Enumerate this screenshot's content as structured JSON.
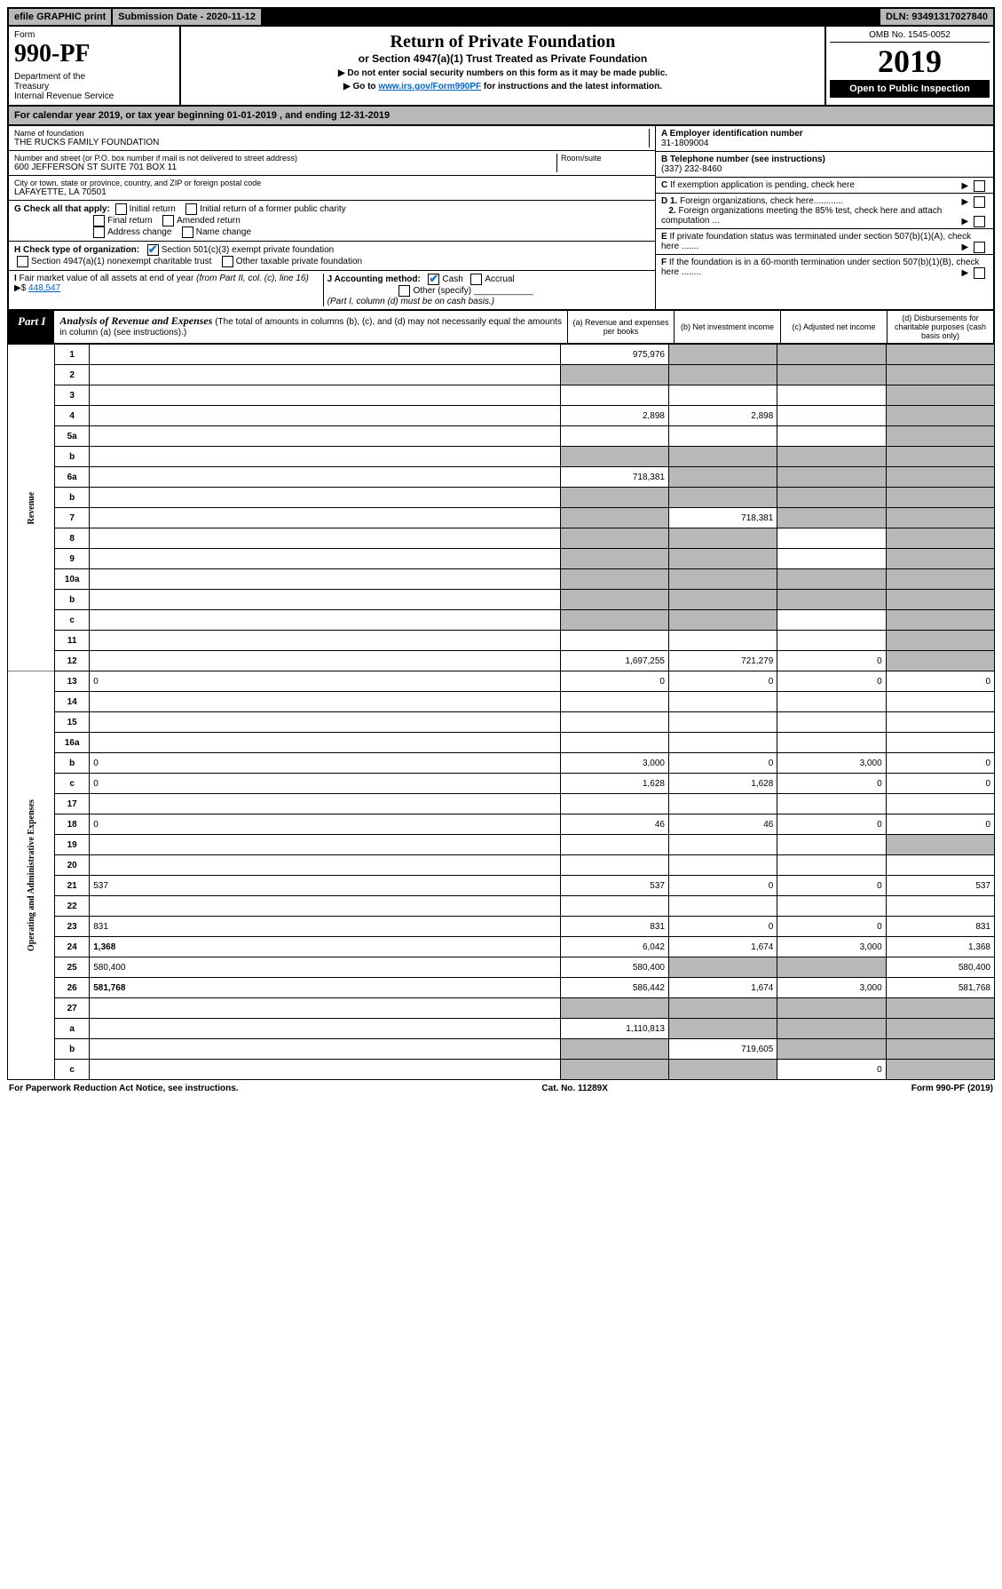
{
  "topbar": {
    "efile": "efile GRAPHIC print",
    "subdate_label": "Submission Date - 2020-11-12",
    "dln": "DLN: 93491317027840"
  },
  "header": {
    "form_label": "Form",
    "form_number": "990-PF",
    "dept": "Department of the Treasury\nInternal Revenue Service",
    "title": "Return of Private Foundation",
    "subtitle": "or Section 4947(a)(1) Trust Treated as Private Foundation",
    "instr1": "▶ Do not enter social security numbers on this form as it may be made public.",
    "instr2_pre": "▶ Go to ",
    "instr2_link": "www.irs.gov/Form990PF",
    "instr2_post": " for instructions and the latest information.",
    "omb": "OMB No. 1545-0052",
    "year": "2019",
    "open": "Open to Public Inspection"
  },
  "calendar": "For calendar year 2019, or tax year beginning 01-01-2019             , and ending 12-31-2019",
  "foundation": {
    "name_label": "Name of foundation",
    "name": "THE RUCKS FAMILY FOUNDATION",
    "addr_label": "Number and street (or P.O. box number if mail is not delivered to street address)",
    "addr": "600 JEFFERSON ST SUITE 701 BOX 11",
    "room_label": "Room/suite",
    "city_label": "City or town, state or province, country, and ZIP or foreign postal code",
    "city": "LAFAYETTE, LA  70501",
    "ein_label": "A Employer identification number",
    "ein": "31-1809004",
    "phone_label": "B Telephone number (see instructions)",
    "phone": "(337) 232-8460",
    "c_label": "C If exemption application is pending, check here",
    "d1": "D 1. Foreign organizations, check here............",
    "d2": "2. Foreign organizations meeting the 85% test, check here and attach computation ...",
    "e": "E If private foundation status was terminated under section 507(b)(1)(A), check here .......",
    "f": "F If the foundation is in a 60-month termination under section 507(b)(1)(B), check here ........"
  },
  "g": {
    "label": "G Check all that apply:",
    "opts": [
      "Initial return",
      "Initial return of a former public charity",
      "Final return",
      "Amended return",
      "Address change",
      "Name change"
    ]
  },
  "h": {
    "label": "H Check type of organization:",
    "opt1": "Section 501(c)(3) exempt private foundation",
    "opt2": "Section 4947(a)(1) nonexempt charitable trust",
    "opt3": "Other taxable private foundation"
  },
  "i": {
    "label": "I Fair market value of all assets at end of year (from Part II, col. (c), line 16) ▶$",
    "value": "448,547"
  },
  "j": {
    "label": "J Accounting method:",
    "cash": "Cash",
    "accrual": "Accrual",
    "other": "Other (specify)",
    "note": "(Part I, column (d) must be on cash basis.)"
  },
  "part1": {
    "label": "Part I",
    "title": "Analysis of Revenue and Expenses",
    "title_note": "(The total of amounts in columns (b), (c), and (d) may not necessarily equal the amounts in column (a) (see instructions).)",
    "col_a": "(a) Revenue and expenses per books",
    "col_b": "(b) Net investment income",
    "col_c": "(c) Adjusted net income",
    "col_d": "(d) Disbursements for charitable purposes (cash basis only)"
  },
  "side_labels": {
    "revenue": "Revenue",
    "expenses": "Operating and Administrative Expenses"
  },
  "rows": [
    {
      "n": "1",
      "d": "",
      "a": "975,976",
      "b": "",
      "c": "",
      "shade": [
        "b",
        "c",
        "d"
      ]
    },
    {
      "n": "2",
      "d": "",
      "a": "",
      "b": "",
      "c": "",
      "shade": [
        "a",
        "b",
        "c",
        "d"
      ],
      "nobold": true
    },
    {
      "n": "3",
      "d": "",
      "a": "",
      "b": "",
      "c": "",
      "shade": [
        "d"
      ]
    },
    {
      "n": "4",
      "d": "",
      "a": "2,898",
      "b": "2,898",
      "c": "",
      "shade": [
        "d"
      ]
    },
    {
      "n": "5a",
      "d": "",
      "a": "",
      "b": "",
      "c": "",
      "shade": [
        "d"
      ]
    },
    {
      "n": "b",
      "d": "",
      "a": "",
      "b": "",
      "c": "",
      "shade": [
        "a",
        "b",
        "c",
        "d"
      ]
    },
    {
      "n": "6a",
      "d": "",
      "a": "718,381",
      "b": "",
      "c": "",
      "shade": [
        "b",
        "c",
        "d"
      ]
    },
    {
      "n": "b",
      "d": "",
      "a": "",
      "b": "",
      "c": "",
      "shade": [
        "a",
        "b",
        "c",
        "d"
      ]
    },
    {
      "n": "7",
      "d": "",
      "a": "",
      "b": "718,381",
      "c": "",
      "shade": [
        "a",
        "c",
        "d"
      ]
    },
    {
      "n": "8",
      "d": "",
      "a": "",
      "b": "",
      "c": "",
      "shade": [
        "a",
        "b",
        "d"
      ]
    },
    {
      "n": "9",
      "d": "",
      "a": "",
      "b": "",
      "c": "",
      "shade": [
        "a",
        "b",
        "d"
      ]
    },
    {
      "n": "10a",
      "d": "",
      "a": "",
      "b": "",
      "c": "",
      "shade": [
        "a",
        "b",
        "c",
        "d"
      ]
    },
    {
      "n": "b",
      "d": "",
      "a": "",
      "b": "",
      "c": "",
      "shade": [
        "a",
        "b",
        "c",
        "d"
      ]
    },
    {
      "n": "c",
      "d": "",
      "a": "",
      "b": "",
      "c": "",
      "shade": [
        "a",
        "b",
        "d"
      ]
    },
    {
      "n": "11",
      "d": "",
      "a": "",
      "b": "",
      "c": "",
      "shade": [
        "d"
      ]
    },
    {
      "n": "12",
      "d": "",
      "a": "1,697,255",
      "b": "721,279",
      "c": "0",
      "bold": true,
      "shade": [
        "d"
      ]
    },
    {
      "n": "13",
      "d": "0",
      "a": "0",
      "b": "0",
      "c": "0"
    },
    {
      "n": "14",
      "d": "",
      "a": "",
      "b": "",
      "c": ""
    },
    {
      "n": "15",
      "d": "",
      "a": "",
      "b": "",
      "c": ""
    },
    {
      "n": "16a",
      "d": "",
      "a": "",
      "b": "",
      "c": ""
    },
    {
      "n": "b",
      "d": "0",
      "a": "3,000",
      "b": "0",
      "c": "3,000"
    },
    {
      "n": "c",
      "d": "0",
      "a": "1,628",
      "b": "1,628",
      "c": "0"
    },
    {
      "n": "17",
      "d": "",
      "a": "",
      "b": "",
      "c": ""
    },
    {
      "n": "18",
      "d": "0",
      "a": "46",
      "b": "46",
      "c": "0"
    },
    {
      "n": "19",
      "d": "",
      "a": "",
      "b": "",
      "c": "",
      "shade": [
        "d"
      ]
    },
    {
      "n": "20",
      "d": "",
      "a": "",
      "b": "",
      "c": ""
    },
    {
      "n": "21",
      "d": "537",
      "a": "537",
      "b": "0",
      "c": "0"
    },
    {
      "n": "22",
      "d": "",
      "a": "",
      "b": "",
      "c": ""
    },
    {
      "n": "23",
      "d": "831",
      "a": "831",
      "b": "0",
      "c": "0"
    },
    {
      "n": "24",
      "d": "1,368",
      "a": "6,042",
      "b": "1,674",
      "c": "3,000",
      "bold": true
    },
    {
      "n": "25",
      "d": "580,400",
      "a": "580,400",
      "b": "",
      "c": "",
      "shade": [
        "b",
        "c"
      ]
    },
    {
      "n": "26",
      "d": "581,768",
      "a": "586,442",
      "b": "1,674",
      "c": "3,000",
      "bold": true
    },
    {
      "n": "27",
      "d": "",
      "a": "",
      "b": "",
      "c": "",
      "shade": [
        "a",
        "b",
        "c",
        "d"
      ]
    },
    {
      "n": "a",
      "d": "",
      "a": "1,110,813",
      "b": "",
      "c": "",
      "bold": true,
      "shade": [
        "b",
        "c",
        "d"
      ]
    },
    {
      "n": "b",
      "d": "",
      "a": "",
      "b": "719,605",
      "c": "",
      "bold": true,
      "shade": [
        "a",
        "c",
        "d"
      ]
    },
    {
      "n": "c",
      "d": "",
      "a": "",
      "b": "",
      "c": "0",
      "bold": true,
      "shade": [
        "a",
        "b",
        "d"
      ]
    }
  ],
  "footer": {
    "left": "For Paperwork Reduction Act Notice, see instructions.",
    "center": "Cat. No. 11289X",
    "right": "Form 990-PF (2019)"
  }
}
